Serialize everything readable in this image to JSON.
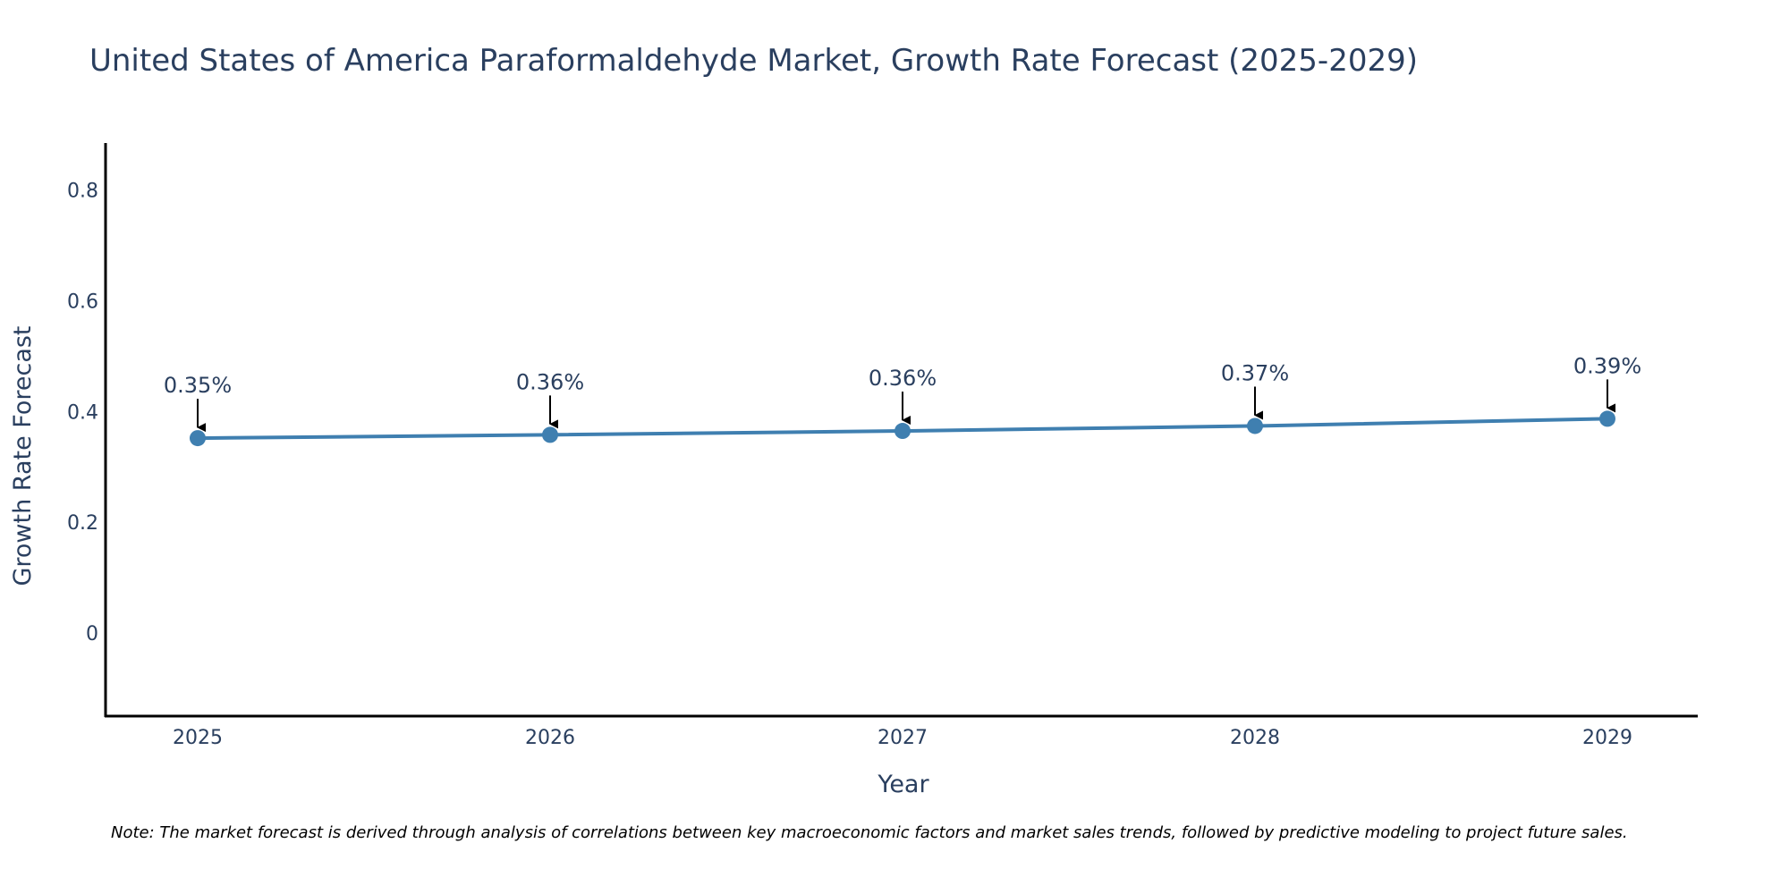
{
  "chart_data": {
    "type": "line",
    "title": "United States of America Paraformaldehyde Market, Growth Rate Forecast (2025-2029)",
    "xlabel": "Year",
    "ylabel": "Growth Rate Forecast",
    "categories": [
      "2025",
      "2026",
      "2027",
      "2028",
      "2029"
    ],
    "series": [
      {
        "name": "Growth Rate Forecast",
        "values": [
          0.352,
          0.358,
          0.365,
          0.374,
          0.387
        ],
        "labels": [
          "0.35%",
          "0.36%",
          "0.36%",
          "0.37%",
          "0.39%"
        ]
      }
    ],
    "ylim": [
      -0.15,
      0.885
    ],
    "yticks": [
      0,
      0.2,
      0.4,
      0.6,
      0.8
    ],
    "ytick_labels": [
      "0",
      "0.2",
      "0.4",
      "0.6",
      "0.8"
    ],
    "grid": false,
    "line_color": "#3f7fb0",
    "marker_color": "#3f7fb0"
  },
  "footnote": "Note: The market forecast is derived through analysis of correlations between key macroeconomic factors and market sales trends, followed by predictive modeling to project future sales."
}
